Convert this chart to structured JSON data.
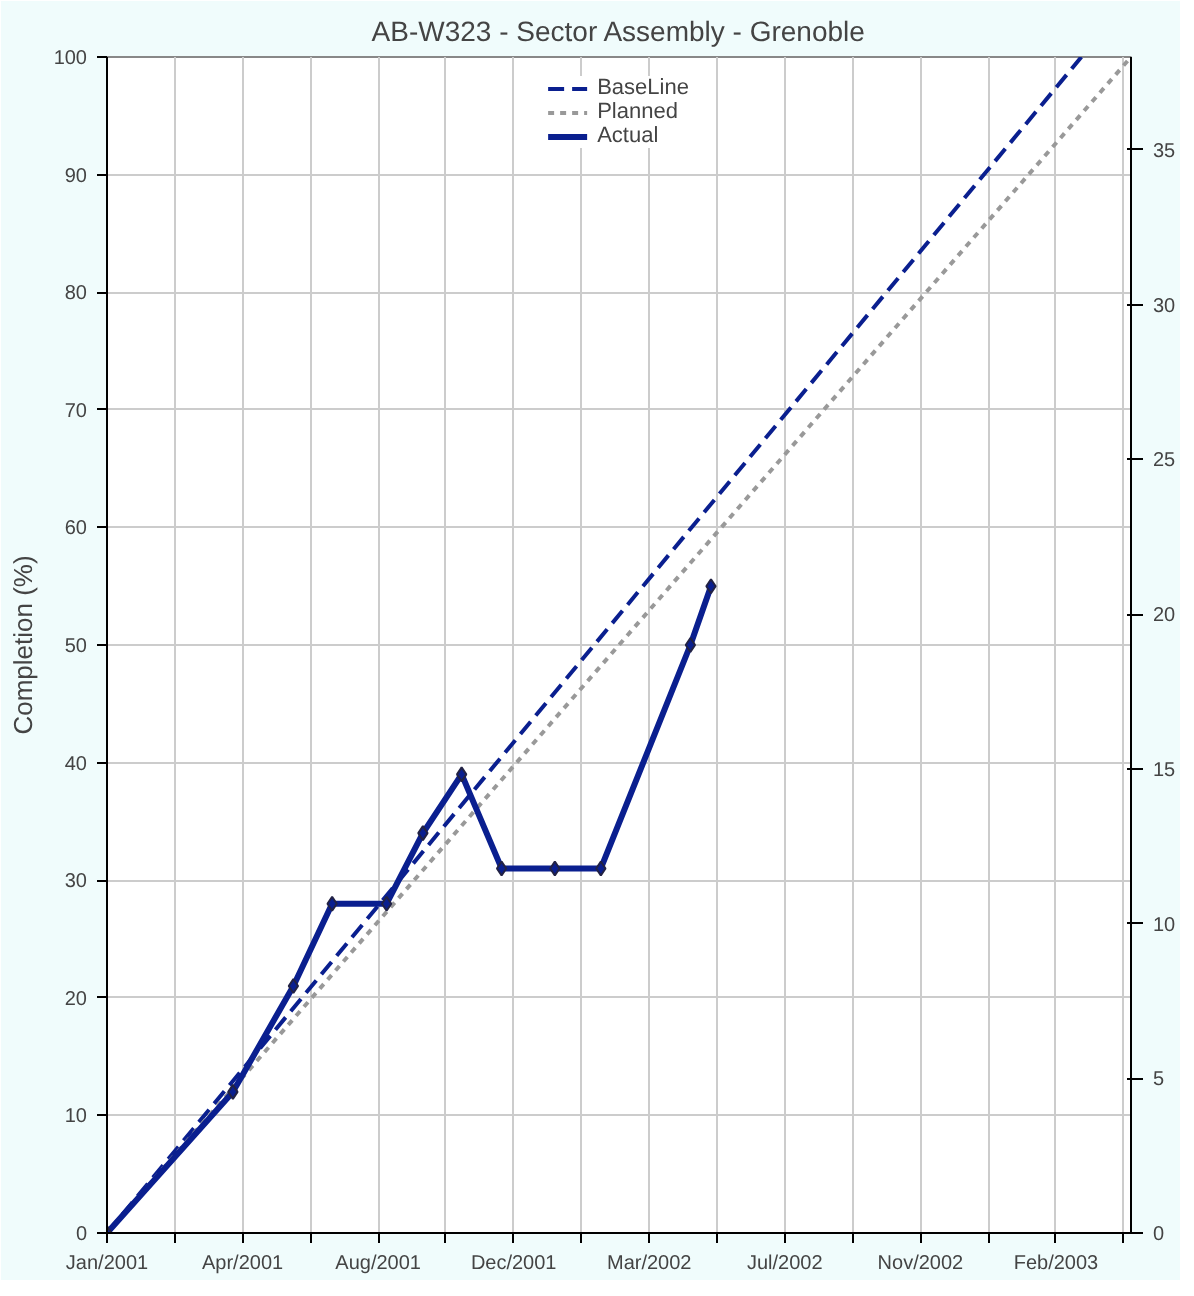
{
  "chart_data": {
    "type": "line",
    "title": "AB-W323 - Sector Assembly - Grenoble",
    "ylabel": "Completion (%)",
    "series": [
      {
        "name": "BaseLine",
        "color": "#0a1f8f",
        "line_style": "dashed",
        "x": [
          "2001-01-01",
          "2003-03-17"
        ],
        "values": [
          0,
          100
        ]
      },
      {
        "name": "Planned",
        "color": "#999999",
        "line_style": "dotted",
        "x": [
          "2001-01-01",
          "2003-04-27"
        ],
        "values": [
          0,
          100
        ]
      },
      {
        "name": "Actual",
        "color": "#0a1f8f",
        "line_style": "solid",
        "marker": "diamond",
        "x": [
          "2001-01-01",
          "2001-04-15",
          "2001-06-04",
          "2001-07-06",
          "2001-08-20",
          "2001-09-19",
          "2001-10-21",
          "2001-11-23",
          "2002-01-06",
          "2002-02-13",
          "2002-04-28",
          "2002-05-15"
        ],
        "values": [
          0,
          12,
          21,
          28,
          28,
          34,
          39,
          31,
          31,
          31,
          50,
          55
        ]
      }
    ],
    "xlim": [
      "2001-01-01",
      "2003-04-27"
    ],
    "xticks": [
      {
        "value": "2001-01-01",
        "label": "Jan/2001"
      },
      {
        "value": "2001-02-26",
        "label": null
      },
      {
        "value": "2001-04-23",
        "label": "Apr/2001"
      },
      {
        "value": "2001-06-18",
        "label": null
      },
      {
        "value": "2001-08-13",
        "label": "Aug/2001"
      },
      {
        "value": "2001-10-08",
        "label": null
      },
      {
        "value": "2001-12-03",
        "label": "Dec/2001"
      },
      {
        "value": "2002-01-28",
        "label": null
      },
      {
        "value": "2002-03-25",
        "label": "Mar/2002"
      },
      {
        "value": "2002-05-20",
        "label": null
      },
      {
        "value": "2002-07-15",
        "label": "Jul/2002"
      },
      {
        "value": "2002-09-09",
        "label": null
      },
      {
        "value": "2002-11-04",
        "label": "Nov/2002"
      },
      {
        "value": "2002-12-30",
        "label": null
      },
      {
        "value": "2003-02-24",
        "label": "Feb/2003"
      },
      {
        "value": "2003-04-21",
        "label": null
      }
    ],
    "ylim": [
      0,
      100
    ],
    "yticks": [
      0,
      10,
      20,
      30,
      40,
      50,
      60,
      70,
      80,
      90,
      100
    ],
    "y2lim": [
      0,
      38
    ],
    "y2ticks": [
      0,
      5,
      10,
      15,
      20,
      25,
      30,
      35
    ],
    "grid": true,
    "legend": "top"
  }
}
